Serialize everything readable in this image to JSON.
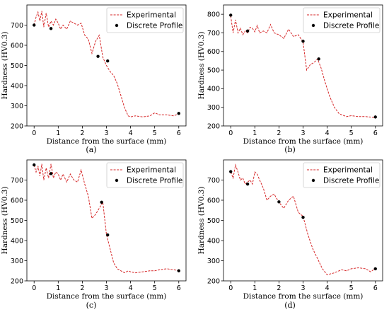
{
  "chart_data": [
    {
      "type": "line",
      "panel_label": "(a)",
      "xlabel": "Distance from the surface (mm)",
      "ylabel": "Hardness (HV0.3)",
      "xlim": [
        -0.3,
        6.3
      ],
      "ylim": [
        200,
        800
      ],
      "xticks": [
        "0",
        "1",
        "2",
        "3",
        "4",
        "5",
        "6"
      ],
      "yticks": [
        "200",
        "300",
        "400",
        "500",
        "600",
        "700"
      ],
      "legend": {
        "placement": "top-right",
        "entries": [
          "Experimental",
          "Discrete Profile"
        ]
      },
      "series": [
        {
          "name": "Experimental",
          "color": "#d62728",
          "x": [
            0,
            0.08,
            0.16,
            0.24,
            0.32,
            0.4,
            0.5,
            0.6,
            0.7,
            0.8,
            0.9,
            1.0,
            1.1,
            1.2,
            1.35,
            1.5,
            1.65,
            1.8,
            1.95,
            2.1,
            2.25,
            2.4,
            2.55,
            2.7,
            2.85,
            3.0,
            3.15,
            3.3,
            3.45,
            3.6,
            3.75,
            3.9,
            4.0,
            4.2,
            4.5,
            4.8,
            5.0,
            5.2,
            5.5,
            5.8,
            6.0
          ],
          "y": [
            700,
            740,
            765,
            720,
            770,
            690,
            760,
            690,
            720,
            700,
            730,
            710,
            680,
            700,
            680,
            720,
            710,
            700,
            710,
            650,
            630,
            560,
            620,
            650,
            540,
            500,
            470,
            450,
            410,
            350,
            290,
            250,
            245,
            250,
            245,
            250,
            265,
            255,
            255,
            250,
            262
          ]
        },
        {
          "name": "Discrete Profile",
          "color": "#000000",
          "x": [
            0,
            0.7,
            2.65,
            3.05,
            6.0
          ],
          "y": [
            700,
            683,
            545,
            522,
            262
          ]
        }
      ]
    },
    {
      "type": "line",
      "panel_label": "(b)",
      "xlabel": "Distance from the surface (mm)",
      "ylabel": "Hardness (HV0.3)",
      "xlim": [
        -0.3,
        6.3
      ],
      "ylim": [
        200,
        850
      ],
      "xticks": [
        "0",
        "1",
        "2",
        "3",
        "4",
        "5",
        "6"
      ],
      "yticks": [
        "200",
        "300",
        "400",
        "500",
        "600",
        "700",
        "800"
      ],
      "legend": {
        "placement": "top-right",
        "entries": [
          "Experimental",
          "Discrete Profile"
        ]
      },
      "series": [
        {
          "name": "Experimental",
          "color": "#d62728",
          "x": [
            0,
            0.1,
            0.2,
            0.3,
            0.4,
            0.5,
            0.6,
            0.7,
            0.8,
            0.9,
            1.0,
            1.1,
            1.2,
            1.35,
            1.5,
            1.65,
            1.8,
            2.0,
            2.2,
            2.4,
            2.6,
            2.8,
            3.0,
            3.15,
            3.3,
            3.45,
            3.6,
            3.75,
            3.9,
            4.1,
            4.3,
            4.5,
            4.8,
            5.0,
            5.3,
            5.6,
            6.0
          ],
          "y": [
            790,
            700,
            770,
            700,
            725,
            690,
            710,
            700,
            730,
            725,
            705,
            740,
            700,
            710,
            700,
            745,
            700,
            690,
            670,
            720,
            680,
            690,
            650,
            500,
            530,
            540,
            560,
            510,
            440,
            360,
            300,
            265,
            250,
            255,
            250,
            250,
            245
          ]
        },
        {
          "name": "Discrete Profile",
          "color": "#000000",
          "x": [
            0,
            0.7,
            3.0,
            3.65,
            6.0
          ],
          "y": [
            795,
            710,
            655,
            560,
            248
          ]
        }
      ]
    },
    {
      "type": "line",
      "panel_label": "(c)",
      "xlabel": "Distance from the surface (mm)",
      "ylabel": "Hardness (HV0.3)",
      "xlim": [
        -0.3,
        6.3
      ],
      "ylim": [
        200,
        800
      ],
      "xticks": [
        "0",
        "1",
        "2",
        "3",
        "4",
        "5",
        "6"
      ],
      "yticks": [
        "200",
        "300",
        "400",
        "500",
        "600",
        "700"
      ],
      "legend": {
        "placement": "top-right",
        "entries": [
          "Experimental",
          "Discrete Profile"
        ]
      },
      "series": [
        {
          "name": "Experimental",
          "color": "#d62728",
          "x": [
            0,
            0.08,
            0.16,
            0.24,
            0.32,
            0.4,
            0.5,
            0.6,
            0.7,
            0.8,
            0.9,
            1.0,
            1.1,
            1.2,
            1.35,
            1.5,
            1.65,
            1.8,
            1.95,
            2.1,
            2.25,
            2.4,
            2.55,
            2.7,
            2.85,
            3.0,
            3.15,
            3.3,
            3.45,
            3.6,
            3.75,
            3.9,
            4.0,
            4.2,
            4.5,
            4.8,
            5.0,
            5.2,
            5.5,
            5.8,
            6.0
          ],
          "y": [
            775,
            740,
            770,
            720,
            780,
            700,
            760,
            710,
            780,
            710,
            740,
            730,
            700,
            730,
            690,
            730,
            700,
            690,
            750,
            680,
            620,
            510,
            530,
            560,
            590,
            430,
            360,
            290,
            260,
            250,
            240,
            250,
            245,
            240,
            245,
            250,
            250,
            255,
            260,
            255,
            250
          ]
        },
        {
          "name": "Discrete Profile",
          "color": "#000000",
          "x": [
            0,
            0.7,
            2.8,
            3.05,
            6.0
          ],
          "y": [
            775,
            732,
            590,
            428,
            250
          ]
        }
      ]
    },
    {
      "type": "line",
      "panel_label": "(d)",
      "xlabel": "Distance from the surface (mm)",
      "ylabel": "Hardness (HV0.3)",
      "xlim": [
        -0.3,
        6.3
      ],
      "ylim": [
        200,
        800
      ],
      "xticks": [
        "0",
        "1",
        "2",
        "3",
        "4",
        "5",
        "6"
      ],
      "yticks": [
        "200",
        "300",
        "400",
        "500",
        "600",
        "700"
      ],
      "legend": {
        "placement": "top-right",
        "entries": [
          "Experimental",
          "Discrete Profile"
        ]
      },
      "series": [
        {
          "name": "Experimental",
          "color": "#d62728",
          "x": [
            0,
            0.1,
            0.2,
            0.3,
            0.4,
            0.5,
            0.6,
            0.7,
            0.8,
            0.9,
            1.0,
            1.1,
            1.2,
            1.35,
            1.5,
            1.65,
            1.8,
            2.0,
            2.2,
            2.4,
            2.6,
            2.8,
            3.0,
            3.2,
            3.4,
            3.6,
            3.8,
            4.0,
            4.3,
            4.6,
            4.8,
            5.0,
            5.3,
            5.6,
            5.8,
            6.0
          ],
          "y": [
            740,
            710,
            775,
            740,
            700,
            710,
            680,
            690,
            700,
            680,
            740,
            730,
            700,
            660,
            600,
            620,
            630,
            590,
            560,
            600,
            620,
            540,
            520,
            430,
            360,
            310,
            260,
            230,
            240,
            255,
            250,
            260,
            265,
            260,
            245,
            262
          ]
        },
        {
          "name": "Discrete Profile",
          "color": "#000000",
          "x": [
            0,
            0.7,
            2.0,
            3.0,
            6.0
          ],
          "y": [
            742,
            680,
            592,
            515,
            260
          ]
        }
      ]
    }
  ]
}
